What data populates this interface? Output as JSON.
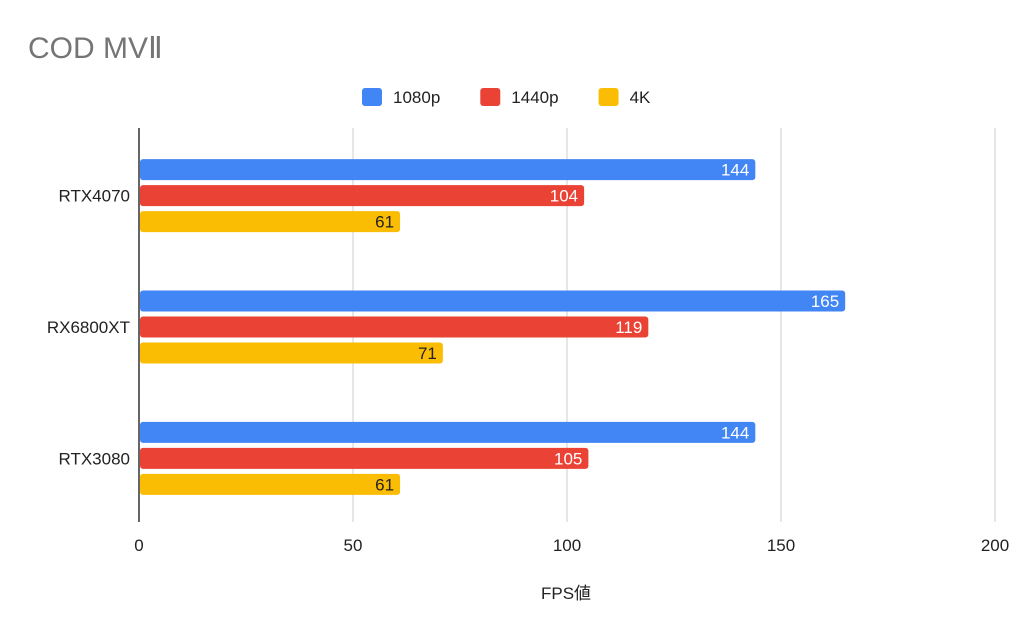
{
  "chart_data": {
    "type": "bar",
    "orientation": "horizontal",
    "title": "COD MVⅡ",
    "xlabel": "FPS値",
    "ylabel": "",
    "xlim": [
      0,
      200
    ],
    "x_ticks": [
      0,
      50,
      100,
      150,
      200
    ],
    "grid": true,
    "legend_position": "top",
    "categories": [
      "RTX4070",
      "RX6800XT",
      "RTX3080"
    ],
    "series": [
      {
        "name": "1080p",
        "color": "#4285f4",
        "label_color": "#ffffff",
        "values": [
          144,
          165,
          144
        ]
      },
      {
        "name": "1440p",
        "color": "#ea4335",
        "label_color": "#ffffff",
        "values": [
          104,
          119,
          105
        ]
      },
      {
        "name": "4K",
        "color": "#fbbc04",
        "label_color": "#222222",
        "values": [
          61,
          71,
          61
        ]
      }
    ]
  }
}
